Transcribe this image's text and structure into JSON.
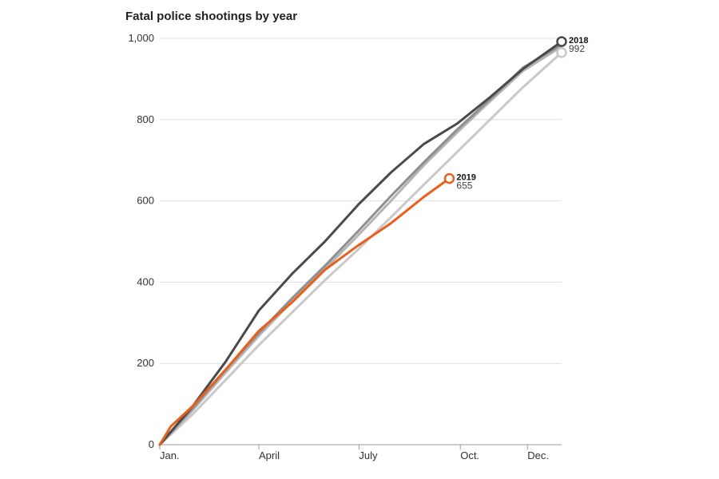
{
  "chart_data": {
    "type": "line",
    "title": "Fatal police shootings by year",
    "xlabel": "",
    "ylabel": "",
    "x_ticks": [
      "Jan.",
      "April",
      "July",
      "Oct.",
      "Dec."
    ],
    "x_tick_days": [
      0,
      90,
      181,
      273,
      334
    ],
    "xlim": [
      0,
      365
    ],
    "ylim": [
      0,
      1000
    ],
    "y_ticks": [
      0,
      200,
      400,
      600,
      800,
      1000
    ],
    "y_tick_labels": [
      "0",
      "200",
      "400",
      "600",
      "800",
      "1,000"
    ],
    "grid": true,
    "series": [
      {
        "name": "",
        "color": "#c9c9c9",
        "end_marker": true,
        "points": [
          [
            0,
            0
          ],
          [
            30,
            75
          ],
          [
            60,
            160
          ],
          [
            90,
            245
          ],
          [
            120,
            325
          ],
          [
            150,
            405
          ],
          [
            180,
            480
          ],
          [
            210,
            560
          ],
          [
            240,
            640
          ],
          [
            270,
            720
          ],
          [
            300,
            800
          ],
          [
            330,
            880
          ],
          [
            365,
            965
          ]
        ]
      },
      {
        "name": "",
        "color": "#b4b4b4",
        "end_marker": false,
        "points": [
          [
            0,
            0
          ],
          [
            30,
            85
          ],
          [
            60,
            178
          ],
          [
            90,
            268
          ],
          [
            120,
            352
          ],
          [
            150,
            432
          ],
          [
            180,
            515
          ],
          [
            210,
            600
          ],
          [
            240,
            688
          ],
          [
            270,
            768
          ],
          [
            300,
            845
          ],
          [
            330,
            920
          ],
          [
            365,
            980
          ]
        ]
      },
      {
        "name": "",
        "color": "#8f8f8f",
        "end_marker": false,
        "points": [
          [
            0,
            0
          ],
          [
            30,
            90
          ],
          [
            60,
            185
          ],
          [
            90,
            275
          ],
          [
            120,
            360
          ],
          [
            150,
            440
          ],
          [
            180,
            525
          ],
          [
            210,
            612
          ],
          [
            240,
            695
          ],
          [
            270,
            775
          ],
          [
            300,
            850
          ],
          [
            330,
            928
          ],
          [
            365,
            985
          ]
        ]
      },
      {
        "name": "2018",
        "color": "#4a4a4a",
        "end_marker": true,
        "end_label": "992",
        "points": [
          [
            0,
            0
          ],
          [
            30,
            95
          ],
          [
            60,
            205
          ],
          [
            90,
            330
          ],
          [
            120,
            420
          ],
          [
            150,
            500
          ],
          [
            180,
            590
          ],
          [
            210,
            670
          ],
          [
            240,
            740
          ],
          [
            270,
            790
          ],
          [
            300,
            855
          ],
          [
            330,
            925
          ],
          [
            365,
            992
          ]
        ]
      },
      {
        "name": "2019",
        "color": "#e8601c",
        "end_marker": true,
        "end_label": "655",
        "points": [
          [
            0,
            0
          ],
          [
            10,
            45
          ],
          [
            30,
            95
          ],
          [
            60,
            185
          ],
          [
            90,
            280
          ],
          [
            120,
            350
          ],
          [
            150,
            430
          ],
          [
            180,
            490
          ],
          [
            210,
            545
          ],
          [
            240,
            610
          ],
          [
            263,
            655
          ]
        ]
      }
    ]
  }
}
